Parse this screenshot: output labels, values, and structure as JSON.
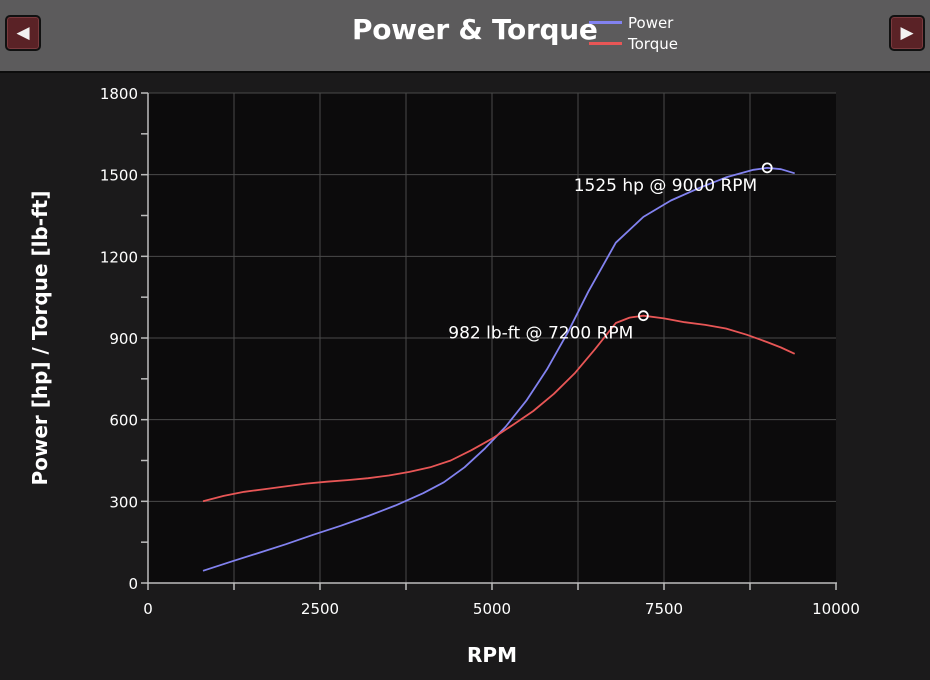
{
  "header": {
    "title": "Power & Torque",
    "prev_icon": "◀",
    "next_icon": "▶"
  },
  "colors": {
    "background": "#1b1a1b",
    "header": "#5c5b5c",
    "plot_area": "#0c0b0c",
    "grid": "#4a4a4a",
    "power": "#8282f0",
    "torque": "#e85656",
    "nav_button": "#5a2226"
  },
  "chart_data": {
    "type": "line",
    "title": "Power & Torque",
    "xlabel": "RPM",
    "ylabel": "Power [hp] / Torque [lb-ft]",
    "xlim": [
      0,
      10000
    ],
    "ylim": [
      0,
      1800
    ],
    "xticks": [
      0,
      2500,
      5000,
      7500,
      10000
    ],
    "yticks": [
      0,
      300,
      600,
      900,
      1200,
      1500,
      1800
    ],
    "grid": true,
    "legend_position": "top",
    "series": [
      {
        "name": "Power",
        "color": "#8282f0",
        "x": [
          800,
          1200,
          1600,
          2000,
          2400,
          2800,
          3200,
          3600,
          4000,
          4300,
          4600,
          4900,
          5200,
          5500,
          5800,
          6100,
          6400,
          6800,
          7200,
          7600,
          8000,
          8400,
          8800,
          9000,
          9200,
          9400
        ],
        "y": [
          45,
          78,
          110,
          142,
          177,
          210,
          246,
          285,
          330,
          370,
          425,
          495,
          575,
          670,
          785,
          920,
          1070,
          1250,
          1345,
          1405,
          1450,
          1490,
          1518,
          1525,
          1520,
          1505
        ]
      },
      {
        "name": "Torque",
        "color": "#e85656",
        "x": [
          800,
          1100,
          1400,
          1700,
          2000,
          2300,
          2600,
          2900,
          3200,
          3500,
          3800,
          4100,
          4400,
          4700,
          5000,
          5300,
          5600,
          5900,
          6200,
          6500,
          6800,
          7000,
          7200,
          7500,
          7800,
          8100,
          8400,
          8700,
          9000,
          9200,
          9400
        ],
        "y": [
          300,
          320,
          335,
          345,
          355,
          365,
          372,
          378,
          385,
          395,
          408,
          425,
          450,
          488,
          530,
          580,
          632,
          695,
          770,
          860,
          955,
          975,
          982,
          972,
          958,
          948,
          935,
          912,
          885,
          865,
          842
        ]
      }
    ],
    "annotations": [
      {
        "text": "1525 hp @ 9000 RPM",
        "x": 9000,
        "y": 1525,
        "series": "Power"
      },
      {
        "text": "982 lb-ft @ 7200 RPM",
        "x": 7200,
        "y": 982,
        "series": "Torque"
      }
    ]
  }
}
